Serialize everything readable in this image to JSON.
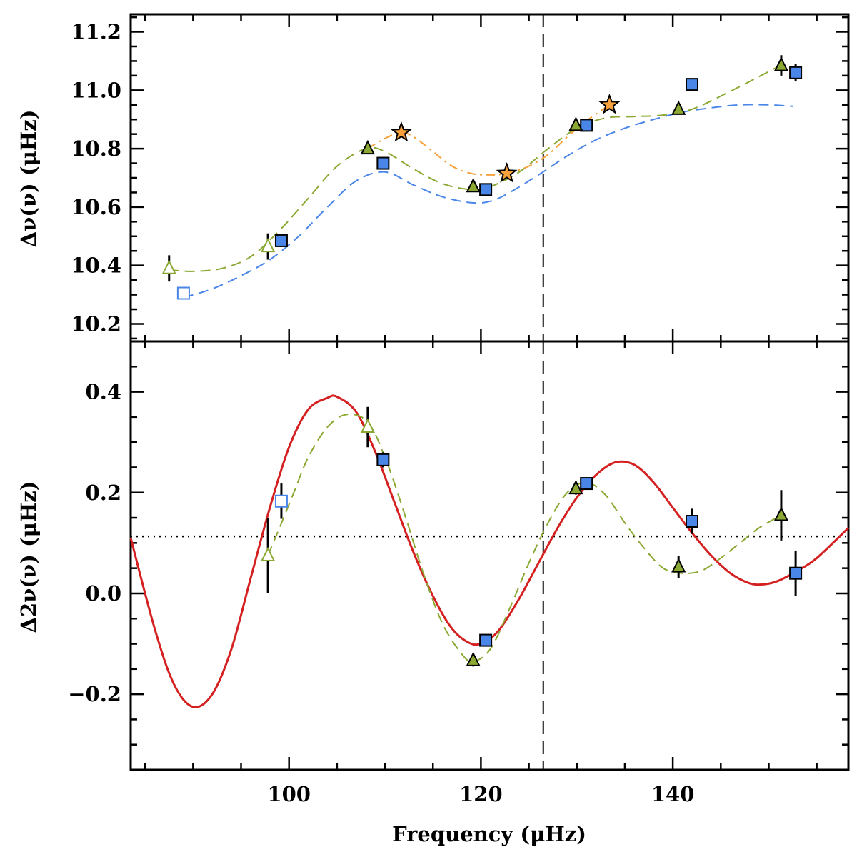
{
  "chart_data": [
    {
      "panel": "top",
      "type": "scatter",
      "ylabel": "Δν(ν) (μHz)",
      "xlim": [
        83.5,
        158.3
      ],
      "ylim": [
        10.14,
        11.26
      ],
      "yticks": [
        "10.2",
        "10.4",
        "10.6",
        "10.8",
        "11.0",
        "11.2"
      ],
      "ytick_values": [
        10.2,
        10.4,
        10.6,
        10.8,
        11.0,
        11.2
      ],
      "vertical_line_x": 126.5,
      "series": [
        {
          "name": "squares",
          "marker": "square",
          "color": "#4a86e8",
          "x": [
            89.0,
            99.2,
            109.8,
            120.5,
            131.0,
            142.0,
            152.8
          ],
          "y": [
            10.305,
            10.485,
            10.75,
            10.66,
            10.88,
            11.02,
            11.06
          ],
          "yerr": [
            0.02,
            0.015,
            0.01,
            0.01,
            0.01,
            0.01,
            0.03
          ],
          "open": [
            true,
            false,
            false,
            false,
            false,
            false,
            false
          ]
        },
        {
          "name": "triangles",
          "marker": "triangle",
          "color": "#8aa832",
          "x": [
            87.5,
            97.8,
            108.2,
            119.2,
            129.9,
            140.6,
            151.3
          ],
          "y": [
            10.39,
            10.465,
            10.8,
            10.67,
            10.88,
            10.935,
            11.085
          ],
          "yerr": [
            0.045,
            0.045,
            0.01,
            0.01,
            0.01,
            0.01,
            0.035
          ],
          "open": [
            true,
            true,
            false,
            false,
            false,
            false,
            false
          ]
        },
        {
          "name": "stars",
          "marker": "star",
          "color": "#f6a13c",
          "x": [
            111.7,
            122.7,
            133.4
          ],
          "y": [
            10.855,
            10.715,
            10.95
          ],
          "yerr": [
            0.0,
            0.0,
            0.0
          ],
          "open": [
            false,
            false,
            false
          ]
        },
        {
          "name": "blue dashed fit",
          "line": "dashed",
          "color": "#4a86e8",
          "x": [
            89,
            92,
            95,
            98,
            101,
            104,
            107,
            110,
            113,
            116,
            119,
            121,
            123,
            126,
            129,
            132,
            135,
            138,
            141,
            144,
            147,
            150,
            152.5
          ],
          "y": [
            10.29,
            10.32,
            10.365,
            10.42,
            10.5,
            10.6,
            10.69,
            10.72,
            10.675,
            10.635,
            10.615,
            10.62,
            10.65,
            10.71,
            10.775,
            10.83,
            10.87,
            10.9,
            10.925,
            10.94,
            10.95,
            10.95,
            10.945
          ]
        },
        {
          "name": "green dashed fit",
          "line": "dashed",
          "color": "#8aa832",
          "x": [
            87.5,
            90,
            93,
            96,
            99,
            102,
            105,
            108,
            110,
            113,
            116,
            119,
            121,
            124,
            127,
            130,
            133,
            136,
            139,
            142,
            145,
            148,
            151.5
          ],
          "y": [
            10.385,
            10.38,
            10.39,
            10.43,
            10.52,
            10.63,
            10.74,
            10.8,
            10.79,
            10.73,
            10.68,
            10.66,
            10.67,
            10.72,
            10.8,
            10.87,
            10.905,
            10.91,
            10.915,
            10.935,
            10.98,
            11.03,
            11.09
          ]
        },
        {
          "name": "orange dash-dot fit",
          "line": "dashdot",
          "color": "#f6a13c",
          "x": [
            108.2,
            110,
            111.7,
            113,
            115,
            117,
            119,
            121,
            122.7,
            125,
            127,
            129,
            131,
            133.4
          ],
          "y": [
            10.8,
            10.835,
            10.855,
            10.84,
            10.79,
            10.74,
            10.715,
            10.71,
            10.715,
            10.74,
            10.78,
            10.84,
            10.895,
            10.95
          ]
        }
      ]
    },
    {
      "panel": "bottom",
      "type": "scatter",
      "xlabel": "Frequency (μHz)",
      "ylabel": "Δ2ν(ν) (μHz)",
      "xlim": [
        83.5,
        158.3
      ],
      "ylim": [
        -0.35,
        0.5
      ],
      "xticks": [
        "100",
        "120",
        "140"
      ],
      "xtick_values": [
        100,
        120,
        140
      ],
      "yticks": [
        "−0.2",
        "0.0",
        "0.2",
        "0.4"
      ],
      "ytick_values": [
        -0.2,
        0.0,
        0.2,
        0.4
      ],
      "horizontal_dotted_y": 0.113,
      "vertical_line_x": 126.5,
      "series": [
        {
          "name": "squares",
          "marker": "square",
          "color": "#4a86e8",
          "x": [
            99.2,
            109.8,
            120.5,
            131.0,
            142.0,
            152.8
          ],
          "y": [
            0.183,
            0.265,
            -0.093,
            0.218,
            0.143,
            0.04
          ],
          "yerr": [
            0.035,
            0.015,
            0.012,
            0.012,
            0.025,
            0.045
          ],
          "open": [
            true,
            false,
            false,
            false,
            false,
            false
          ]
        },
        {
          "name": "triangles",
          "marker": "triangle",
          "color": "#8aa832",
          "x": [
            97.8,
            108.2,
            119.2,
            129.9,
            140.6,
            151.3
          ],
          "y": [
            0.075,
            0.33,
            -0.133,
            0.208,
            0.053,
            0.155
          ],
          "yerr": [
            0.075,
            0.04,
            0.012,
            0.012,
            0.022,
            0.05
          ],
          "open": [
            true,
            true,
            false,
            false,
            false,
            false
          ]
        },
        {
          "name": "red solid fit",
          "line": "solid",
          "color": "#d42020",
          "x": [
            83.5,
            86,
            88,
            90,
            92,
            94,
            96,
            98,
            100,
            102,
            104,
            105,
            107,
            109,
            111,
            113,
            115,
            117,
            119,
            120.5,
            122,
            124,
            126,
            128,
            130,
            132,
            134,
            136,
            138,
            140,
            142,
            144,
            146,
            148,
            149.5,
            151,
            153,
            155,
            158.3
          ],
          "y": [
            0.11,
            -0.07,
            -0.18,
            -0.225,
            -0.2,
            -0.11,
            0.03,
            0.17,
            0.29,
            0.365,
            0.388,
            0.39,
            0.36,
            0.28,
            0.18,
            0.08,
            -0.005,
            -0.07,
            -0.1,
            -0.095,
            -0.07,
            -0.01,
            0.06,
            0.13,
            0.19,
            0.235,
            0.26,
            0.255,
            0.22,
            0.17,
            0.12,
            0.075,
            0.04,
            0.02,
            0.018,
            0.025,
            0.045,
            0.07,
            0.13
          ]
        },
        {
          "name": "green dashed fit",
          "line": "dashed",
          "color": "#8aa832",
          "x": [
            97.8,
            99,
            100.5,
            102,
            104,
            106,
            108.2,
            110,
            112,
            114,
            116,
            118,
            119.2,
            121,
            123,
            125,
            127,
            129,
            131,
            133,
            135,
            137,
            139,
            141,
            143,
            145,
            147,
            149,
            151.3
          ],
          "y": [
            0.075,
            0.13,
            0.2,
            0.27,
            0.33,
            0.355,
            0.34,
            0.27,
            0.16,
            0.04,
            -0.06,
            -0.12,
            -0.135,
            -0.11,
            -0.03,
            0.06,
            0.14,
            0.2,
            0.22,
            0.195,
            0.14,
            0.09,
            0.05,
            0.04,
            0.045,
            0.07,
            0.1,
            0.13,
            0.155
          ]
        }
      ]
    }
  ]
}
